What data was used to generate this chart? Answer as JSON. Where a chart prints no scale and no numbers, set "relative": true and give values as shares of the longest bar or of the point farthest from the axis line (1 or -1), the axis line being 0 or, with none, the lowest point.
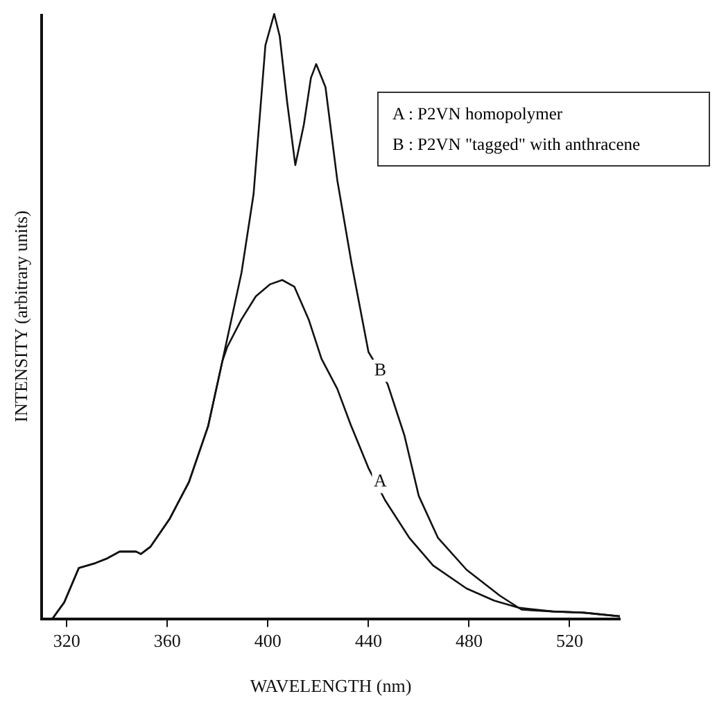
{
  "chart_data": {
    "type": "line",
    "relative": true,
    "xlabel": "WAVELENGTH (nm)",
    "ylabel": "INTENSITY (arbitrary units)",
    "xlim": [
      310,
      540
    ],
    "xticks": [
      320,
      360,
      400,
      440,
      480,
      520
    ],
    "grid": false,
    "legend": false,
    "marker": "none",
    "line_style": "solid",
    "annotations": [
      "A : P2VN homopolymer",
      "B : P2VN \"tagged\" with anthracene",
      {
        "text": "A",
        "x": 444.7,
        "y": 0.226
      },
      {
        "text": "B",
        "x": 444.7,
        "y": 0.41
      }
    ],
    "series": [
      {
        "color": "#111111",
        "x": [
          314.3,
          319,
          324.8,
          331.4,
          336.2,
          341,
          347.6,
          349.5,
          353.3,
          360.9,
          368.6,
          376.2,
          381.9,
          383.8,
          389.5,
          395.2,
          400.9,
          405.7,
          410.5,
          416.2,
          421.3,
          427.6,
          433.0,
          440,
          446.6,
          456.2,
          465.7,
          479,
          490,
          500,
          513.3,
          525.7,
          540
        ],
        "values": [
          0,
          0.027,
          0.084,
          0.092,
          0.1,
          0.111,
          0.111,
          0.107,
          0.119,
          0.165,
          0.226,
          0.318,
          0.426,
          0.449,
          0.495,
          0.533,
          0.553,
          0.56,
          0.549,
          0.495,
          0.43,
          0.38,
          0.32,
          0.249,
          0.196,
          0.134,
          0.088,
          0.05,
          0.03,
          0.018,
          0.012,
          0.01,
          0.004
        ]
      },
      {
        "color": "#111111",
        "x": [
          314.3,
          319,
          324.8,
          331.4,
          336.2,
          341,
          347.6,
          349.5,
          353.3,
          360.9,
          368.6,
          376.2,
          381.9,
          389.5,
          394.3,
          397.1,
          399,
          402.5,
          404.7,
          407.6,
          410.9,
          414.3,
          417.1,
          419.2,
          422.9,
          427.6,
          433.3,
          440,
          447.6,
          454.3,
          460,
          467.6,
          479,
          492.3,
          500.9,
          513.3,
          525.7,
          540
        ],
        "values": [
          0,
          0.027,
          0.084,
          0.092,
          0.1,
          0.111,
          0.111,
          0.107,
          0.119,
          0.165,
          0.226,
          0.318,
          0.426,
          0.572,
          0.702,
          0.848,
          0.948,
          1,
          0.963,
          0.856,
          0.75,
          0.817,
          0.894,
          0.917,
          0.879,
          0.725,
          0.587,
          0.441,
          0.388,
          0.303,
          0.203,
          0.134,
          0.081,
          0.038,
          0.015,
          0.012,
          0.01,
          0.004
        ]
      }
    ]
  }
}
